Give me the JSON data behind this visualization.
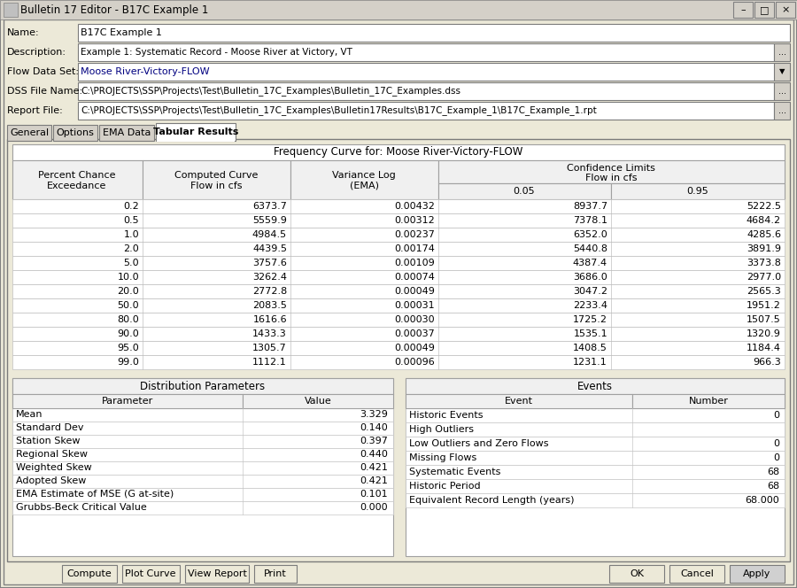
{
  "title_bar": "Bulletin 17 Editor - B17C Example 1",
  "name_label": "Name:",
  "name_value": "B17C Example 1",
  "description_label": "Description:",
  "description_value": "Example 1: Systematic Record - Moose River at Victory, VT",
  "flow_dataset_label": "Flow Data Set:",
  "flow_dataset_value": "Moose River-Victory-FLOW",
  "dss_label": "DSS File Name:",
  "dss_value": "C:\\PROJECTS\\SSP\\Projects\\Test\\Bulletin_17C_Examples\\Bulletin_17C_Examples.dss",
  "report_label": "Report File:",
  "report_value": "C:\\PROJECTS\\SSP\\Projects\\Test\\Bulletin_17C_Examples\\Bulletin17Results\\B17C_Example_1\\B17C_Example_1.rpt",
  "tabs": [
    "General",
    "Options",
    "EMA Data",
    "Tabular Results"
  ],
  "active_tab": "Tabular Results",
  "freq_curve_title": "Frequency Curve for: Moose River-Victory-FLOW",
  "table_data": [
    [
      "0.2",
      "6373.7",
      "0.00432",
      "8937.7",
      "5222.5"
    ],
    [
      "0.5",
      "5559.9",
      "0.00312",
      "7378.1",
      "4684.2"
    ],
    [
      "1.0",
      "4984.5",
      "0.00237",
      "6352.0",
      "4285.6"
    ],
    [
      "2.0",
      "4439.5",
      "0.00174",
      "5440.8",
      "3891.9"
    ],
    [
      "5.0",
      "3757.6",
      "0.00109",
      "4387.4",
      "3373.8"
    ],
    [
      "10.0",
      "3262.4",
      "0.00074",
      "3686.0",
      "2977.0"
    ],
    [
      "20.0",
      "2772.8",
      "0.00049",
      "3047.2",
      "2565.3"
    ],
    [
      "50.0",
      "2083.5",
      "0.00031",
      "2233.4",
      "1951.2"
    ],
    [
      "80.0",
      "1616.6",
      "0.00030",
      "1725.2",
      "1507.5"
    ],
    [
      "90.0",
      "1433.3",
      "0.00037",
      "1535.1",
      "1320.9"
    ],
    [
      "95.0",
      "1305.7",
      "0.00049",
      "1408.5",
      "1184.4"
    ],
    [
      "99.0",
      "1112.1",
      "0.00096",
      "1231.1",
      "966.3"
    ]
  ],
  "dist_params_title": "Distribution Parameters",
  "dist_params": [
    [
      "Mean",
      "3.329"
    ],
    [
      "Standard Dev",
      "0.140"
    ],
    [
      "Station Skew",
      "0.397"
    ],
    [
      "Regional Skew",
      "0.440"
    ],
    [
      "Weighted Skew",
      "0.421"
    ],
    [
      "Adopted Skew",
      "0.421"
    ],
    [
      "EMA Estimate of MSE (G at-site)",
      "0.101"
    ],
    [
      "Grubbs-Beck Critical Value",
      "0.000"
    ]
  ],
  "events_title": "Events",
  "events_data": [
    [
      "Historic Events",
      "0"
    ],
    [
      "High Outliers",
      ""
    ],
    [
      "Low Outliers and Zero Flows",
      "0"
    ],
    [
      "Missing Flows",
      "0"
    ],
    [
      "Systematic Events",
      "68"
    ],
    [
      "Historic Period",
      "68"
    ],
    [
      "Equivalent Record Length (years)",
      "68.000"
    ]
  ],
  "buttons_left": [
    "Compute",
    "Plot Curve",
    "View Report",
    "Print"
  ],
  "buttons_right": [
    "OK",
    "Cancel",
    "Apply"
  ],
  "bg_gray": "#ece9d8",
  "field_white": "#ffffff",
  "table_bg": "#ffffff",
  "header_bg": "#f0f0f0",
  "titlebar_bg": "#0a246a",
  "titlebar_fg": "#ffffff",
  "dialog_bg": "#ece9d8",
  "border_dark": "#7b7b7b",
  "border_light": "#c8c8c8",
  "text_black": "#000000",
  "text_blue": "#000080",
  "btn_face": "#ece9d8",
  "tab_active_bg": "#ffffff",
  "tab_inactive_bg": "#d4d0c8",
  "active_tab_text_color": "#000000"
}
